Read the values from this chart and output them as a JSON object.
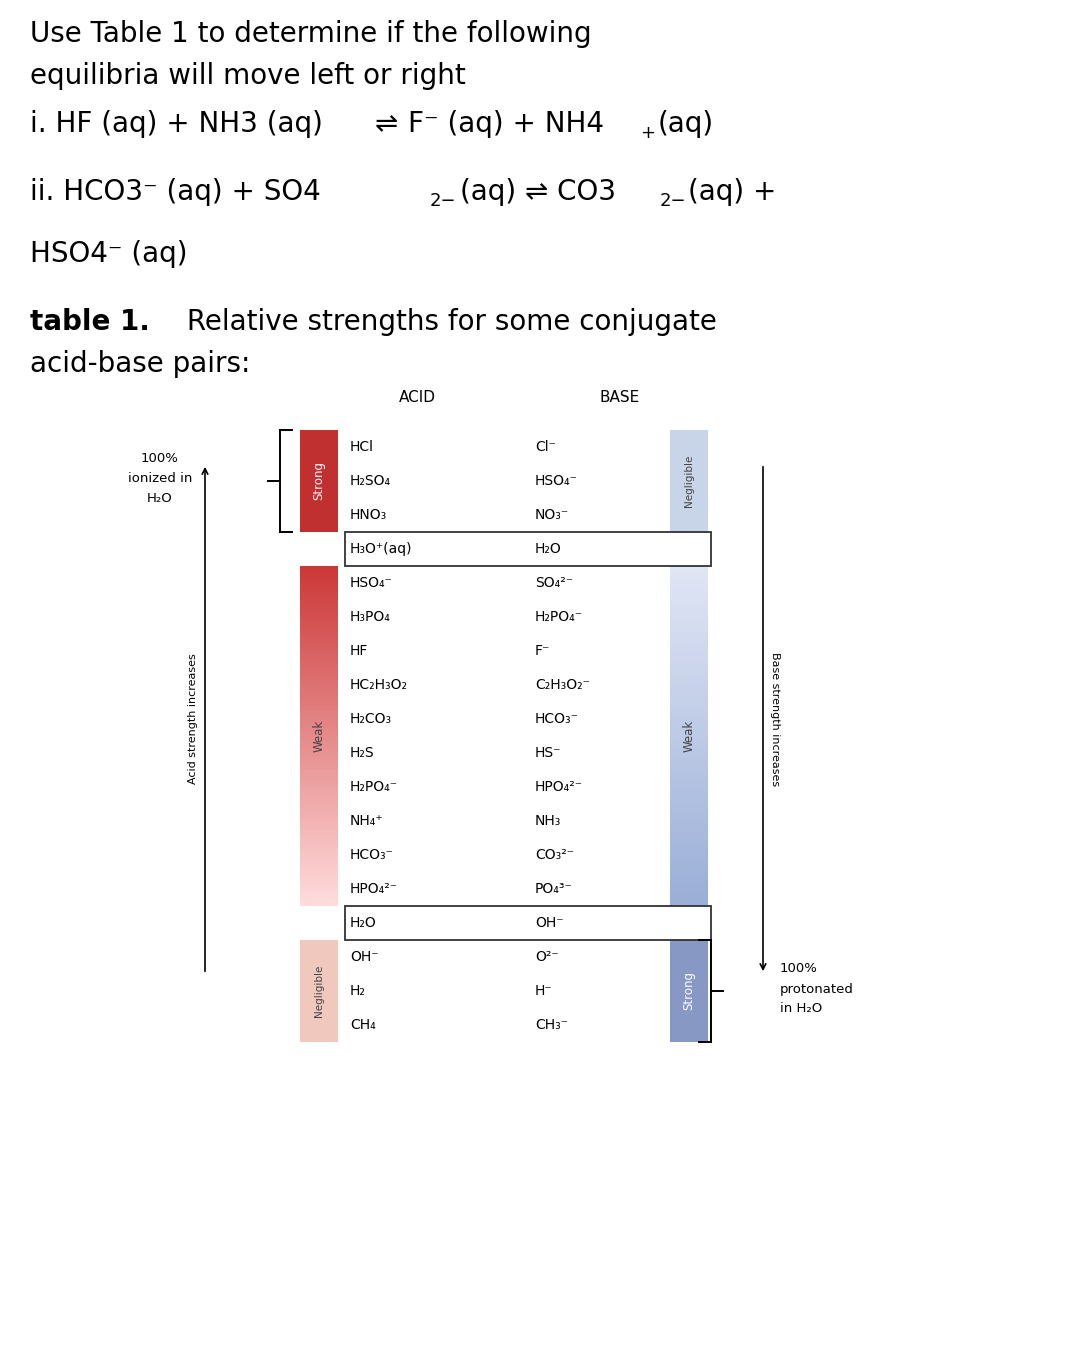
{
  "bg_color": "#ffffff",
  "header_line1": "Use Table 1 to determine if the following",
  "header_line2": "equilibria will move left or right",
  "acids": [
    "HCl",
    "H₂SO₄",
    "HNO₃",
    "H₃O⁺(aq)",
    "HSO₄⁻",
    "H₃PO₄",
    "HF",
    "HC₂H₃O₂",
    "H₂CO₃",
    "H₂S",
    "H₂PO₄⁻",
    "NH₄⁺",
    "HCO₃⁻",
    "HPO₄²⁻",
    "H₂O",
    "OH⁻",
    "H₂",
    "CH₄"
  ],
  "bases": [
    "Cl⁻",
    "HSO₄⁻",
    "NO₃⁻",
    "H₂O",
    "SO₄²⁻",
    "H₂PO₄⁻",
    "F⁻",
    "C₂H₃O₂⁻",
    "HCO₃⁻",
    "HS⁻",
    "HPO₄²⁻",
    "NH₃",
    "CO₃²⁻",
    "PO₄³⁻",
    "OH⁻",
    "O²⁻",
    "H⁻",
    "CH₃⁻"
  ]
}
